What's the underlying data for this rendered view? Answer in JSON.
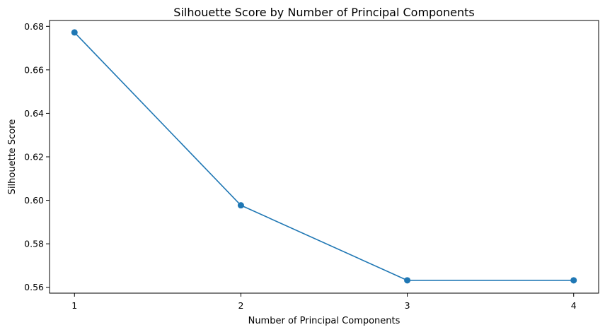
{
  "chart_data": {
    "type": "line",
    "title": "Silhouette Score by Number of Principal Components",
    "xlabel": "Number of Principal Components",
    "ylabel": "Silhouette Score",
    "x": [
      1,
      2,
      3,
      4
    ],
    "x_tick_labels": [
      "1",
      "2",
      "3",
      "4"
    ],
    "y_ticks": [
      0.56,
      0.58,
      0.6,
      0.62,
      0.64,
      0.66,
      0.68
    ],
    "y_tick_labels": [
      "0.56",
      "0.58",
      "0.60",
      "0.62",
      "0.64",
      "0.66",
      "0.68"
    ],
    "xlim": [
      0.85,
      4.15
    ],
    "ylim": [
      0.5573,
      0.6827
    ],
    "grid": false,
    "series": [
      {
        "values": [
          0.6772,
          0.5977,
          0.5632,
          0.5632
        ],
        "color": "#1f77b4",
        "marker": "circle"
      }
    ]
  }
}
